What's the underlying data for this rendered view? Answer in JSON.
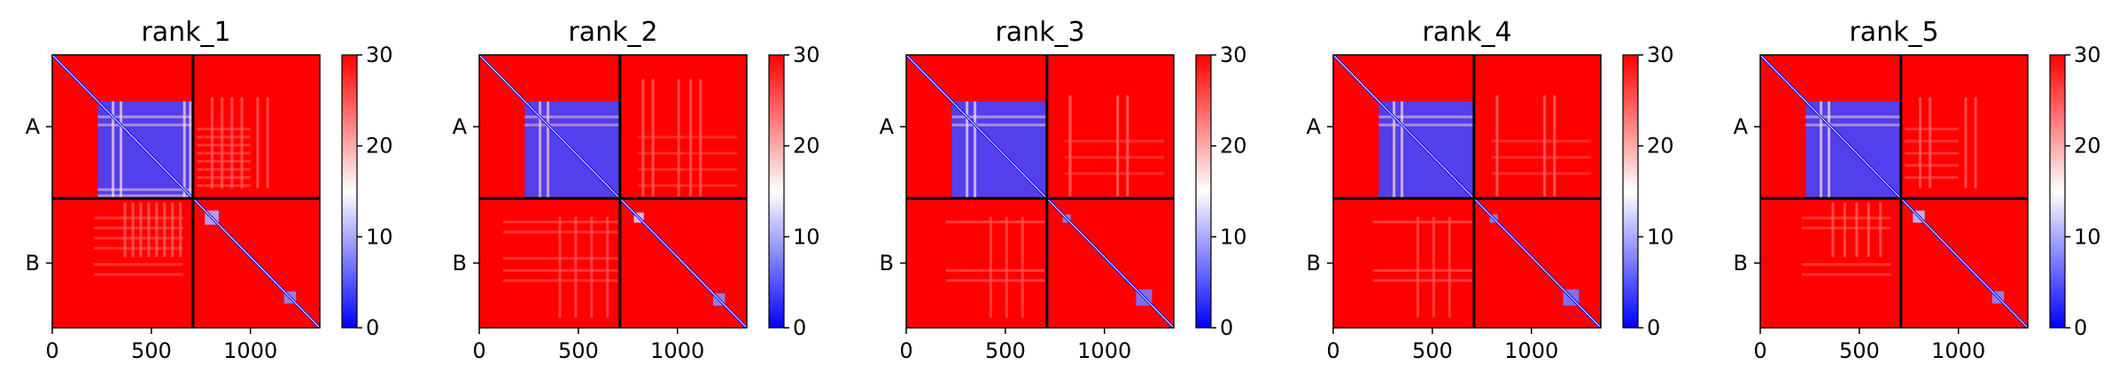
{
  "chart_data": [
    {
      "type": "heatmap",
      "title": "rank_1",
      "chains": [
        "A",
        "B"
      ],
      "chain_boundary": 710,
      "xlim": [
        0,
        1350
      ],
      "xticks": [
        0,
        500,
        1000
      ],
      "colorbar": {
        "min": 0,
        "max": 30,
        "ticks": [
          0,
          10,
          20,
          30
        ],
        "colormap": "bwr"
      },
      "features": [
        {
          "type": "block",
          "x": [
            230,
            710
          ],
          "y": [
            230,
            710
          ],
          "value": 4
        },
        {
          "type": "bands",
          "xs": [
            300,
            340,
            660,
            690
          ],
          "y": [
            230,
            710
          ],
          "value": 17
        },
        {
          "type": "block",
          "x": [
            770,
            840
          ],
          "y": [
            770,
            840
          ],
          "value": 10
        },
        {
          "type": "block",
          "x": [
            1170,
            1230
          ],
          "y": [
            1170,
            1230
          ],
          "value": 8
        },
        {
          "type": "bands",
          "xs": [
            360,
            400,
            440,
            480,
            520,
            560,
            600,
            640
          ],
          "y": [
            730,
            1000
          ],
          "value": 24
        },
        {
          "type": "bands",
          "xs": [
            800,
            850,
            900,
            950,
            1030,
            1080
          ],
          "y": [
            210,
            660
          ],
          "value": 24
        }
      ]
    },
    {
      "type": "heatmap",
      "title": "rank_2",
      "chains": [
        "A",
        "B"
      ],
      "chain_boundary": 710,
      "xlim": [
        0,
        1350
      ],
      "xticks": [
        0,
        500,
        1000
      ],
      "colorbar": {
        "min": 0,
        "max": 30,
        "ticks": [
          0,
          10,
          20,
          30
        ],
        "colormap": "bwr"
      },
      "features": [
        {
          "type": "block",
          "x": [
            230,
            710
          ],
          "y": [
            230,
            710
          ],
          "value": 4
        },
        {
          "type": "bands",
          "xs": [
            300,
            340
          ],
          "y": [
            230,
            710
          ],
          "value": 18
        },
        {
          "type": "block",
          "x": [
            780,
            830
          ],
          "y": [
            780,
            830
          ],
          "value": 12
        },
        {
          "type": "block",
          "x": [
            1180,
            1240
          ],
          "y": [
            1180,
            1240
          ],
          "value": 8
        },
        {
          "type": "bands",
          "xs": [
            820,
            870,
            1000,
            1060,
            1110
          ],
          "y": [
            120,
            700
          ],
          "value": 24
        },
        {
          "type": "bands",
          "xs": [
            400,
            480,
            560,
            640
          ],
          "y": [
            800,
            1300
          ],
          "value": 25
        }
      ]
    },
    {
      "type": "heatmap",
      "title": "rank_3",
      "chains": [
        "A",
        "B"
      ],
      "chain_boundary": 710,
      "xlim": [
        0,
        1350
      ],
      "xticks": [
        0,
        500,
        1000
      ],
      "colorbar": {
        "min": 0,
        "max": 30,
        "ticks": [
          0,
          10,
          20,
          30
        ],
        "colormap": "bwr"
      },
      "features": [
        {
          "type": "block",
          "x": [
            230,
            710
          ],
          "y": [
            230,
            710
          ],
          "value": 4
        },
        {
          "type": "bands",
          "xs": [
            300,
            340
          ],
          "y": [
            230,
            710
          ],
          "value": 17
        },
        {
          "type": "block",
          "x": [
            790,
            830
          ],
          "y": [
            790,
            830
          ],
          "value": 8
        },
        {
          "type": "block",
          "x": [
            1160,
            1240
          ],
          "y": [
            1160,
            1240
          ],
          "value": 7
        },
        {
          "type": "bands",
          "xs": [
            820,
            1060,
            1110
          ],
          "y": [
            200,
            700
          ],
          "value": 23
        },
        {
          "type": "bands",
          "xs": [
            420,
            500,
            580
          ],
          "y": [
            800,
            1300
          ],
          "value": 25
        }
      ]
    },
    {
      "type": "heatmap",
      "title": "rank_4",
      "chains": [
        "A",
        "B"
      ],
      "chain_boundary": 710,
      "xlim": [
        0,
        1350
      ],
      "xticks": [
        0,
        500,
        1000
      ],
      "colorbar": {
        "min": 0,
        "max": 30,
        "ticks": [
          0,
          10,
          20,
          30
        ],
        "colormap": "bwr"
      },
      "features": [
        {
          "type": "block",
          "x": [
            230,
            710
          ],
          "y": [
            230,
            710
          ],
          "value": 4
        },
        {
          "type": "bands",
          "xs": [
            300,
            340
          ],
          "y": [
            230,
            710
          ],
          "value": 17
        },
        {
          "type": "block",
          "x": [
            790,
            830
          ],
          "y": [
            790,
            830
          ],
          "value": 8
        },
        {
          "type": "block",
          "x": [
            1160,
            1240
          ],
          "y": [
            1160,
            1240
          ],
          "value": 7
        },
        {
          "type": "bands",
          "xs": [
            820,
            1060,
            1110
          ],
          "y": [
            200,
            700
          ],
          "value": 23
        },
        {
          "type": "bands",
          "xs": [
            420,
            500,
            580
          ],
          "y": [
            800,
            1300
          ],
          "value": 25
        }
      ]
    },
    {
      "type": "heatmap",
      "title": "rank_5",
      "chains": [
        "A",
        "B"
      ],
      "chain_boundary": 710,
      "xlim": [
        0,
        1350
      ],
      "xticks": [
        0,
        500,
        1000
      ],
      "colorbar": {
        "min": 0,
        "max": 30,
        "ticks": [
          0,
          10,
          20,
          30
        ],
        "colormap": "bwr"
      },
      "features": [
        {
          "type": "block",
          "x": [
            230,
            710
          ],
          "y": [
            230,
            710
          ],
          "value": 4
        },
        {
          "type": "bands",
          "xs": [
            300,
            340
          ],
          "y": [
            230,
            710
          ],
          "value": 17
        },
        {
          "type": "block",
          "x": [
            770,
            830
          ],
          "y": [
            770,
            830
          ],
          "value": 11
        },
        {
          "type": "block",
          "x": [
            1170,
            1230
          ],
          "y": [
            1170,
            1230
          ],
          "value": 8
        },
        {
          "type": "bands",
          "xs": [
            360,
            420,
            480,
            540,
            600
          ],
          "y": [
            730,
            1000
          ],
          "value": 24
        },
        {
          "type": "bands",
          "xs": [
            800,
            850,
            1030,
            1080
          ],
          "y": [
            210,
            660
          ],
          "value": 24
        }
      ]
    }
  ]
}
